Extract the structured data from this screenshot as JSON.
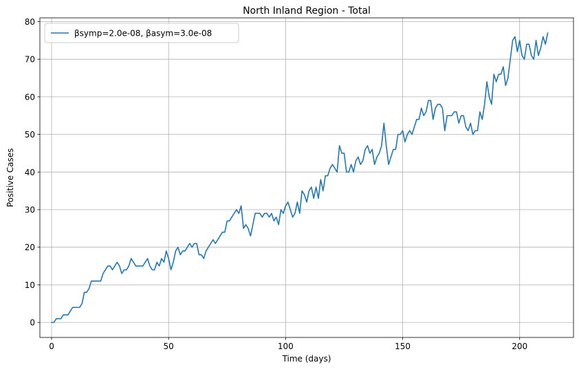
{
  "chart_data": {
    "type": "line",
    "title": "North Inland Region - Total",
    "xlabel": "Time (days)",
    "ylabel": "Positive Cases",
    "xlim": [
      -5,
      223
    ],
    "ylim": [
      -4,
      81
    ],
    "xticks": [
      0,
      50,
      100,
      150,
      200
    ],
    "yticks": [
      0,
      10,
      20,
      30,
      40,
      50,
      60,
      70,
      80
    ],
    "grid": true,
    "legend_position": "top-left",
    "series": [
      {
        "name": "βsymp=2.0e-08, βasym=3.0e-08",
        "color": "#1f77b4",
        "x": [
          0,
          1,
          2,
          3,
          4,
          5,
          6,
          7,
          8,
          9,
          10,
          11,
          12,
          13,
          14,
          15,
          16,
          17,
          18,
          19,
          20,
          21,
          22,
          23,
          24,
          25,
          26,
          27,
          28,
          29,
          30,
          31,
          32,
          33,
          34,
          35,
          36,
          37,
          38,
          39,
          40,
          41,
          42,
          43,
          44,
          45,
          46,
          47,
          48,
          49,
          50,
          51,
          52,
          53,
          54,
          55,
          56,
          57,
          58,
          59,
          60,
          61,
          62,
          63,
          64,
          65,
          66,
          67,
          68,
          69,
          70,
          71,
          72,
          73,
          74,
          75,
          76,
          77,
          78,
          79,
          80,
          81,
          82,
          83,
          84,
          85,
          86,
          87,
          88,
          89,
          90,
          91,
          92,
          93,
          94,
          95,
          96,
          97,
          98,
          99,
          100,
          101,
          102,
          103,
          104,
          105,
          106,
          107,
          108,
          109,
          110,
          111,
          112,
          113,
          114,
          115,
          116,
          117,
          118,
          119,
          120,
          121,
          122,
          123,
          124,
          125,
          126,
          127,
          128,
          129,
          130,
          131,
          132,
          133,
          134,
          135,
          136,
          137,
          138,
          139,
          140,
          141,
          142,
          143,
          144,
          145,
          146,
          147,
          148,
          149,
          150,
          151,
          152,
          153,
          154,
          155,
          156,
          157,
          158,
          159,
          160,
          161,
          162,
          163,
          164,
          165,
          166,
          167,
          168,
          169,
          170,
          171,
          172,
          173,
          174,
          175,
          176,
          177,
          178,
          179,
          180,
          181,
          182,
          183,
          184,
          185,
          186,
          187,
          188,
          189,
          190,
          191,
          192,
          193,
          194,
          195,
          196,
          197,
          198,
          199,
          200,
          201,
          202,
          203,
          204,
          205,
          206,
          207,
          208,
          209,
          210,
          211,
          212
        ],
        "y": [
          0,
          0,
          1,
          1,
          1,
          2,
          2,
          2,
          3,
          4,
          4,
          4,
          4,
          5,
          8,
          8,
          9,
          11,
          11,
          11,
          11,
          11,
          13,
          14,
          15,
          15,
          14,
          15,
          16,
          15,
          13,
          14,
          14,
          15,
          17,
          16,
          15,
          15,
          15,
          15,
          16,
          17,
          15,
          14,
          14,
          16,
          15,
          17,
          16,
          19,
          17,
          14,
          16,
          19,
          20,
          18,
          19,
          19,
          20,
          21,
          20,
          21,
          21,
          18,
          18,
          17,
          19,
          20,
          21,
          22,
          21,
          22,
          23,
          24,
          24,
          27,
          27,
          28,
          29,
          30,
          29,
          31,
          25,
          26,
          25,
          23,
          26,
          29,
          29,
          29,
          28,
          29,
          29,
          28,
          29,
          27,
          28,
          26,
          30,
          29,
          31,
          32,
          30,
          28,
          29,
          32,
          29,
          35,
          34,
          32,
          35,
          36,
          33,
          36,
          33,
          38,
          35,
          39,
          39,
          41,
          42,
          41,
          40,
          47,
          45,
          45,
          40,
          40,
          42,
          40,
          43,
          44,
          42,
          43,
          46,
          47,
          45,
          46,
          42,
          44,
          45,
          47,
          53,
          47,
          42,
          44,
          46,
          46,
          50,
          50,
          51,
          48,
          50,
          51,
          50,
          52,
          54,
          54,
          57,
          55,
          56,
          59,
          59,
          54,
          57,
          58,
          58,
          57,
          51,
          55,
          55,
          55,
          56,
          56,
          53,
          55,
          55,
          52,
          51,
          53,
          50,
          51,
          51,
          56,
          54,
          58,
          64,
          60,
          58,
          66,
          64,
          66,
          66,
          68,
          63,
          65,
          70,
          75,
          76,
          72,
          75,
          71,
          70,
          74,
          74,
          71,
          70,
          75,
          71,
          73,
          76,
          74,
          77
        ]
      }
    ]
  }
}
